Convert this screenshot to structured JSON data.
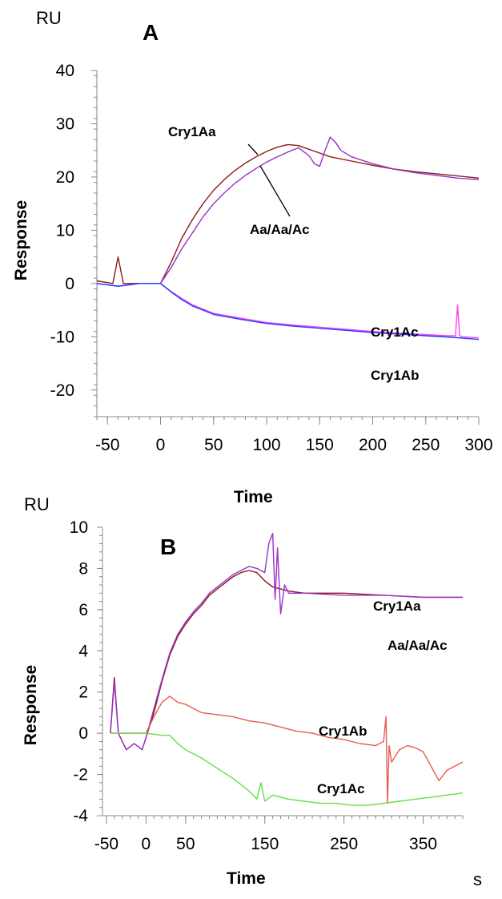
{
  "chart_data": [
    {
      "type": "line",
      "panel": "A",
      "unit": "RU",
      "xlabel": "Time",
      "ylabel": "Response",
      "xlim": [
        -60,
        300
      ],
      "ylim": [
        -25,
        40
      ],
      "xticks": [
        -50,
        0,
        50,
        100,
        150,
        200,
        250,
        300
      ],
      "yticks": [
        40,
        30,
        20,
        10,
        0,
        -10,
        -20
      ],
      "grid": false,
      "series": [
        {
          "name": "Cry1Aa",
          "color": "#8b1a1a",
          "x": [
            -60,
            -45,
            -40,
            -35,
            -25,
            -10,
            0,
            10,
            20,
            30,
            40,
            50,
            60,
            70,
            80,
            90,
            100,
            110,
            120,
            130,
            140,
            150,
            160,
            180,
            200,
            220,
            240,
            260,
            280,
            300
          ],
          "y": [
            0.5,
            0,
            5,
            0,
            0,
            0,
            0,
            4,
            8.5,
            12,
            15,
            17.5,
            19.5,
            21.2,
            22.6,
            23.8,
            24.8,
            25.6,
            26.1,
            25.9,
            25.2,
            24.5,
            23.8,
            23,
            22.2,
            21.5,
            21,
            20.6,
            20.2,
            19.8
          ]
        },
        {
          "name": "Aa/Aa/Ac",
          "color": "#9b30c8",
          "x": [
            -60,
            -40,
            -20,
            0,
            10,
            20,
            30,
            40,
            50,
            60,
            70,
            80,
            90,
            100,
            110,
            120,
            130,
            140,
            145,
            150,
            155,
            160,
            165,
            170,
            180,
            200,
            220,
            240,
            260,
            280,
            300
          ],
          "y": [
            0,
            -0.5,
            0,
            0,
            3,
            6.5,
            9.5,
            12.5,
            15,
            17,
            18.8,
            20.3,
            21.6,
            22.8,
            23.8,
            24.7,
            25.5,
            24,
            22.5,
            22,
            25,
            27.5,
            26.5,
            25,
            23.8,
            22.5,
            21.5,
            20.8,
            20.3,
            19.8,
            19.5
          ]
        },
        {
          "name": "Cry1Ac",
          "color": "#ff40ff",
          "x": [
            -60,
            -40,
            -20,
            0,
            10,
            20,
            30,
            50,
            75,
            100,
            125,
            150,
            175,
            200,
            225,
            250,
            270,
            278,
            280,
            282,
            285,
            300
          ],
          "y": [
            0,
            -0.5,
            0,
            0,
            -1.5,
            -2.8,
            -4,
            -5.6,
            -6.5,
            -7.3,
            -7.8,
            -8.2,
            -8.6,
            -9,
            -9.3,
            -9.6,
            -9.8,
            -9.8,
            -4,
            -9.8,
            -10,
            -10.2
          ]
        },
        {
          "name": "Cry1Ab",
          "color": "#1f3cff",
          "x": [
            -60,
            -40,
            -20,
            0,
            10,
            20,
            30,
            50,
            75,
            100,
            125,
            150,
            175,
            200,
            225,
            250,
            275,
            300
          ],
          "y": [
            0,
            -0.5,
            0,
            0,
            -1.6,
            -3,
            -4.2,
            -5.8,
            -6.7,
            -7.5,
            -8,
            -8.4,
            -8.8,
            -9.2,
            -9.5,
            -9.8,
            -10.1,
            -10.5
          ]
        }
      ]
    },
    {
      "type": "line",
      "panel": "B",
      "unit": "RU",
      "xlabel": "Time",
      "ylabel": "Response",
      "xunit": "s",
      "xlim": [
        -55,
        400
      ],
      "ylim": [
        -4,
        10
      ],
      "xticks": [
        -50,
        0,
        50,
        150,
        250,
        350
      ],
      "yticks": [
        10,
        8,
        6,
        4,
        2,
        0,
        -2,
        -4
      ],
      "grid": false,
      "series": [
        {
          "name": "Cry1Aa",
          "color": "#8b1a1a",
          "x": [
            -45,
            -40,
            -35,
            -25,
            -15,
            -5,
            0,
            10,
            20,
            30,
            40,
            50,
            60,
            70,
            80,
            90,
            100,
            110,
            120,
            130,
            140,
            150,
            160,
            170,
            180,
            200,
            250,
            300,
            350,
            400
          ],
          "y": [
            0,
            2.7,
            0,
            -0.8,
            -0.5,
            -0.8,
            -0.2,
            1,
            2.5,
            3.8,
            4.7,
            5.3,
            5.8,
            6.2,
            6.7,
            7,
            7.3,
            7.6,
            7.8,
            7.9,
            7.8,
            7.4,
            7.1,
            7,
            6.9,
            6.8,
            6.8,
            6.7,
            6.6,
            6.6
          ]
        },
        {
          "name": "Aa/Aa/Ac",
          "color": "#9b30c8",
          "x": [
            -45,
            -40,
            -35,
            -25,
            -15,
            -5,
            0,
            10,
            20,
            30,
            40,
            50,
            60,
            70,
            80,
            90,
            100,
            110,
            120,
            130,
            140,
            150,
            155,
            160,
            163,
            166,
            170,
            175,
            180,
            200,
            250,
            300,
            350,
            400
          ],
          "y": [
            0,
            2.5,
            0,
            -0.8,
            -0.5,
            -0.8,
            -0.2,
            1.2,
            2.6,
            3.9,
            4.8,
            5.4,
            5.9,
            6.3,
            6.8,
            7.1,
            7.4,
            7.7,
            7.9,
            8.1,
            8,
            7.8,
            9.2,
            9.7,
            6.5,
            9,
            5.8,
            7.2,
            6.8,
            6.8,
            6.7,
            6.7,
            6.6,
            6.6
          ]
        },
        {
          "name": "Cry1Ab",
          "color": "#e65c4f",
          "x": [
            -45,
            0,
            10,
            20,
            30,
            40,
            50,
            70,
            90,
            110,
            130,
            150,
            170,
            190,
            210,
            230,
            250,
            270,
            290,
            300,
            303,
            305,
            307,
            310,
            320,
            330,
            340,
            350,
            360,
            370,
            380,
            390,
            400
          ],
          "y": [
            0,
            0,
            0.8,
            1.5,
            1.8,
            1.5,
            1.4,
            1,
            0.9,
            0.8,
            0.6,
            0.5,
            0.3,
            0.1,
            0,
            -0.2,
            -0.3,
            -0.5,
            -0.6,
            -0.4,
            0.8,
            -3.4,
            -0.6,
            -1.4,
            -0.8,
            -0.6,
            -0.7,
            -0.9,
            -1.6,
            -2.3,
            -1.8,
            -1.6,
            -1.4
          ]
        },
        {
          "name": "Cry1Ac",
          "color": "#66dd44",
          "x": [
            -45,
            0,
            20,
            30,
            40,
            50,
            70,
            90,
            110,
            130,
            140,
            145,
            150,
            160,
            180,
            200,
            220,
            240,
            260,
            280,
            300,
            320,
            340,
            360,
            380,
            400
          ],
          "y": [
            0,
            0,
            -0.1,
            -0.1,
            -0.5,
            -0.8,
            -1.2,
            -1.7,
            -2.2,
            -2.8,
            -3.2,
            -2.4,
            -3.3,
            -3,
            -3.2,
            -3.3,
            -3.4,
            -3.4,
            -3.5,
            -3.5,
            -3.4,
            -3.3,
            -3.2,
            -3.1,
            -3,
            -2.9
          ]
        }
      ]
    }
  ]
}
